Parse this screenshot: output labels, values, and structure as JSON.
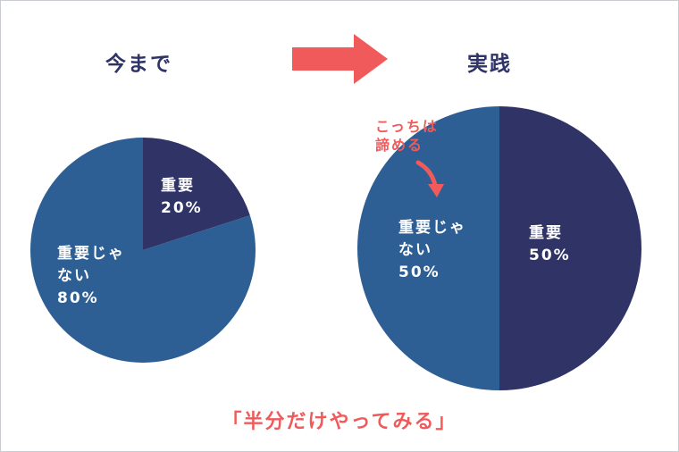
{
  "headings": {
    "before": "今まで",
    "after": "実践"
  },
  "note_text": "こっちは\n諦める",
  "bottom_caption": "「半分だけやってみる」",
  "colors": {
    "important": "#2f3366",
    "not_important": "#2d5e94",
    "accent": "#f15a5a"
  },
  "chart_data": [
    {
      "type": "pie",
      "title": "今まで",
      "slices": [
        {
          "label": "重要",
          "value": 20,
          "value_label": "20%",
          "color": "#2f3366"
        },
        {
          "label": "重要じゃ\nない",
          "value": 80,
          "value_label": "80%",
          "color": "#2d5e94"
        }
      ]
    },
    {
      "type": "pie",
      "title": "実践",
      "slices": [
        {
          "label": "重要",
          "value": 50,
          "value_label": "50%",
          "color": "#2f3366"
        },
        {
          "label": "重要じゃ\nない",
          "value": 50,
          "value_label": "50%",
          "color": "#2d5e94"
        }
      ]
    }
  ]
}
